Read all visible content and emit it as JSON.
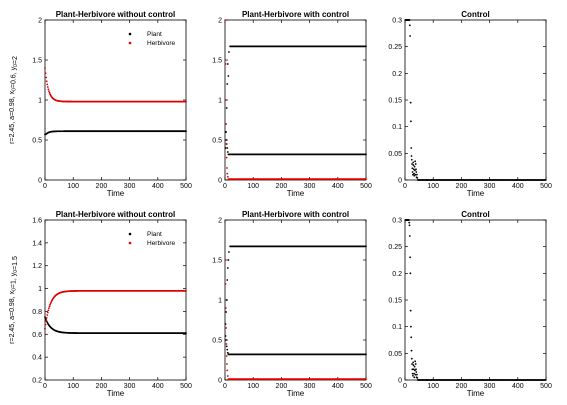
{
  "figure": {
    "row_ylabels": [
      {
        "parts": [
          {
            "t": "r=2.45, a=0.98, x"
          },
          {
            "t": "0",
            "sub": true
          },
          {
            "t": "=0.6, y"
          },
          {
            "t": "0",
            "sub": true
          },
          {
            "t": "=2"
          }
        ]
      },
      {
        "parts": [
          {
            "t": "r=2.45, a=0.98, x"
          },
          {
            "t": "0",
            "sub": true
          },
          {
            "t": "=1, y"
          },
          {
            "t": "0",
            "sub": true
          },
          {
            "t": "=1.5"
          }
        ]
      }
    ]
  },
  "chart_data": [
    {
      "type": "scatter",
      "row": 0,
      "col": 0,
      "title": "Plant-Herbivore without control",
      "xlabel": "Time",
      "xlim": [
        0,
        500
      ],
      "ylim": [
        0,
        2
      ],
      "xticks": [
        0,
        100,
        200,
        300,
        400,
        500
      ],
      "yticks": [
        0,
        0.5,
        1,
        1.5,
        2
      ],
      "legend": {
        "position": "top-right"
      },
      "series": [
        {
          "name": "Plant",
          "color": "#000000",
          "model": "decay",
          "start": 0.57,
          "steady": 0.61,
          "tau": 12,
          "dip": 0.05
        },
        {
          "name": "Herbivore",
          "color": "#e00000",
          "model": "decay",
          "start": 1.4,
          "steady": 0.98,
          "tau": 12
        }
      ]
    },
    {
      "type": "scatter",
      "row": 0,
      "col": 1,
      "title": "Plant-Herbivore with control",
      "xlabel": "Time",
      "xlim": [
        0,
        500
      ],
      "ylim": [
        0,
        2
      ],
      "xticks": [
        0,
        100,
        200,
        300,
        400,
        500
      ],
      "yticks": [
        0,
        0.5,
        1,
        1.5,
        2
      ],
      "series": [
        {
          "color": "#000000",
          "model": "step",
          "t_switch": 18,
          "steady": 1.67,
          "scatter": [
            [
              2,
              0.4
            ],
            [
              4,
              0.6
            ],
            [
              6,
              0.9
            ],
            [
              8,
              1.2
            ],
            [
              10,
              1.45
            ],
            [
              12,
              1.3
            ],
            [
              14,
              1.6
            ]
          ]
        },
        {
          "color": "#000000",
          "model": "step",
          "t_switch": 12,
          "steady": 0.32,
          "scatter": [
            [
              2,
              0.6
            ],
            [
              4,
              0.5
            ],
            [
              6,
              0.45
            ],
            [
              8,
              0.4
            ],
            [
              10,
              0.35
            ]
          ]
        },
        {
          "color": "#e00000",
          "model": "step",
          "t_switch": 12,
          "steady": 0.01,
          "scatter": [
            [
              1,
              2.0
            ],
            [
              2,
              1.45
            ],
            [
              3,
              1.0
            ],
            [
              4,
              0.7
            ],
            [
              5,
              0.45
            ],
            [
              6,
              0.28
            ],
            [
              7,
              0.15
            ],
            [
              8,
              0.08
            ],
            [
              10,
              0.04
            ]
          ]
        }
      ]
    },
    {
      "type": "scatter",
      "row": 0,
      "col": 2,
      "title": "Control",
      "xlabel": "Time",
      "xlim": [
        0,
        500
      ],
      "ylim": [
        0,
        0.3
      ],
      "xticks": [
        0,
        100,
        200,
        300,
        400,
        500
      ],
      "yticks": [
        0,
        0.05,
        0.1,
        0.15,
        0.2,
        0.25,
        0.3
      ],
      "series": [
        {
          "color": "#000000",
          "model": "control",
          "points": [
            [
              1,
              0.3
            ],
            [
              2,
              0.3
            ],
            [
              3,
              0.3
            ],
            [
              4,
              0.3
            ],
            [
              5,
              0.3
            ],
            [
              6,
              0.3
            ],
            [
              7,
              0.3
            ],
            [
              8,
              0.3
            ],
            [
              9,
              0.3
            ],
            [
              10,
              0.3
            ],
            [
              11,
              0.3
            ],
            [
              12,
              0.3
            ],
            [
              13,
              0.3
            ],
            [
              14,
              0.3
            ],
            [
              15,
              0.3
            ],
            [
              16,
              0.3
            ],
            [
              17,
              0.29
            ],
            [
              18,
              0.27
            ],
            [
              20,
              0.145
            ],
            [
              21,
              0.11
            ],
            [
              22,
              0.06
            ],
            [
              23,
              0.045
            ],
            [
              24,
              0.038
            ],
            [
              25,
              0.03
            ],
            [
              26,
              0.022
            ],
            [
              27,
              0.015
            ],
            [
              28,
              0.01
            ],
            [
              29,
              0.033
            ],
            [
              30,
              0.028
            ],
            [
              31,
              0.02
            ],
            [
              32,
              0.012
            ],
            [
              33,
              0.008
            ],
            [
              34,
              0.025
            ],
            [
              35,
              0.018
            ],
            [
              36,
              0.035
            ],
            [
              37,
              0.01
            ],
            [
              38,
              0.03
            ],
            [
              39,
              0.02
            ],
            [
              40,
              0.015
            ],
            [
              41,
              0.005
            ],
            [
              42,
              0.01
            ],
            [
              44,
              0.004
            ]
          ],
          "tail_from": 45
        }
      ]
    },
    {
      "type": "scatter",
      "row": 1,
      "col": 0,
      "title": "Plant-Herbivore without control",
      "xlabel": "Time",
      "xlim": [
        0,
        500
      ],
      "ylim": [
        0.2,
        1.6
      ],
      "xticks": [
        0,
        100,
        200,
        300,
        400,
        500
      ],
      "yticks": [
        0.2,
        0.4,
        0.6,
        0.8,
        1,
        1.2,
        1.4,
        1.6
      ],
      "legend": {
        "position": "top-right"
      },
      "series": [
        {
          "name": "Plant",
          "color": "#000000",
          "model": "decay",
          "start": 0.75,
          "steady": 0.61,
          "tau": 20
        },
        {
          "name": "Herbivore",
          "color": "#e00000",
          "model": "decay",
          "start": 0.65,
          "steady": 0.98,
          "tau": 18
        }
      ]
    },
    {
      "type": "scatter",
      "row": 1,
      "col": 1,
      "title": "Plant-Herbivore with control",
      "xlabel": "Time",
      "xlim": [
        0,
        500
      ],
      "ylim": [
        0,
        2
      ],
      "xticks": [
        0,
        100,
        200,
        300,
        400,
        500
      ],
      "yticks": [
        0,
        0.5,
        1,
        1.5,
        2
      ],
      "series": [
        {
          "color": "#000000",
          "model": "step",
          "t_switch": 18,
          "steady": 1.67,
          "scatter": [
            [
              2,
              0.7
            ],
            [
              4,
              0.85
            ],
            [
              6,
              1.0
            ],
            [
              8,
              1.25
            ],
            [
              10,
              1.4
            ],
            [
              12,
              1.5
            ],
            [
              14,
              1.6
            ]
          ]
        },
        {
          "color": "#000000",
          "model": "step",
          "t_switch": 12,
          "steady": 0.32,
          "scatter": [
            [
              2,
              0.55
            ],
            [
              4,
              0.5
            ],
            [
              6,
              0.42
            ],
            [
              8,
              0.38
            ],
            [
              10,
              0.34
            ]
          ]
        },
        {
          "color": "#e00000",
          "model": "step",
          "t_switch": 12,
          "steady": 0.01,
          "scatter": [
            [
              1,
              1.5
            ],
            [
              2,
              1.2
            ],
            [
              3,
              0.9
            ],
            [
              4,
              0.65
            ],
            [
              5,
              0.45
            ],
            [
              6,
              0.3
            ],
            [
              7,
              0.2
            ],
            [
              8,
              0.12
            ],
            [
              10,
              0.05
            ]
          ]
        }
      ]
    },
    {
      "type": "scatter",
      "row": 1,
      "col": 2,
      "title": "Control",
      "xlabel": "Time",
      "xlim": [
        0,
        500
      ],
      "ylim": [
        0,
        0.3
      ],
      "xticks": [
        0,
        100,
        200,
        300,
        400,
        500
      ],
      "yticks": [
        0,
        0.05,
        0.1,
        0.15,
        0.2,
        0.25,
        0.3
      ],
      "series": [
        {
          "color": "#000000",
          "model": "control",
          "points": [
            [
              1,
              0.3
            ],
            [
              2,
              0.3
            ],
            [
              3,
              0.3
            ],
            [
              4,
              0.3
            ],
            [
              5,
              0.3
            ],
            [
              6,
              0.3
            ],
            [
              7,
              0.3
            ],
            [
              8,
              0.3
            ],
            [
              9,
              0.3
            ],
            [
              10,
              0.3
            ],
            [
              11,
              0.3
            ],
            [
              12,
              0.3
            ],
            [
              13,
              0.3
            ],
            [
              14,
              0.3
            ],
            [
              15,
              0.295
            ],
            [
              16,
              0.29
            ],
            [
              17,
              0.27
            ],
            [
              18,
              0.23
            ],
            [
              19,
              0.2
            ],
            [
              20,
              0.13
            ],
            [
              21,
              0.1
            ],
            [
              22,
              0.08
            ],
            [
              23,
              0.055
            ],
            [
              24,
              0.04
            ],
            [
              25,
              0.03
            ],
            [
              26,
              0.02
            ],
            [
              27,
              0.012
            ],
            [
              28,
              0.008
            ],
            [
              29,
              0.033
            ],
            [
              30,
              0.028
            ],
            [
              31,
              0.02
            ],
            [
              32,
              0.012
            ],
            [
              33,
              0.005
            ],
            [
              34,
              0.025
            ],
            [
              35,
              0.018
            ],
            [
              36,
              0.035
            ],
            [
              37,
              0.01
            ],
            [
              38,
              0.03
            ],
            [
              39,
              0.02
            ],
            [
              40,
              0.015
            ],
            [
              41,
              0.005
            ],
            [
              42,
              0.01
            ],
            [
              44,
              0.004
            ]
          ],
          "tail_from": 45
        }
      ]
    }
  ]
}
